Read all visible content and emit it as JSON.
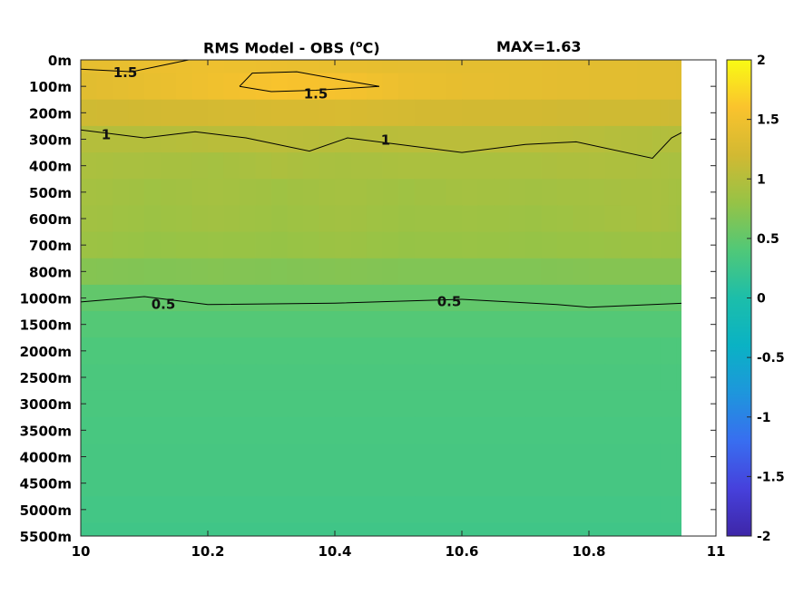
{
  "chart_data": {
    "type": "heatmap",
    "title": "RMS Model - OBS (",
    "title_unit_sup": "o",
    "title_unit_end": "C)",
    "max_label": "MAX=1.63",
    "x_ticks": [
      10,
      10.2,
      10.4,
      10.6,
      10.8,
      11
    ],
    "x_tick_labels": [
      "10",
      "10.2",
      "10.4",
      "10.6",
      "10.8",
      "11"
    ],
    "xlim": [
      10,
      11
    ],
    "x_data_end": 10.95,
    "y_levels": [
      "0m",
      "100m",
      "200m",
      "300m",
      "400m",
      "500m",
      "600m",
      "700m",
      "800m",
      "1000m",
      "1500m",
      "2000m",
      "2500m",
      "3000m",
      "3500m",
      "4000m",
      "4500m",
      "5000m",
      "5500m"
    ],
    "colorbar": {
      "ticks": [
        2,
        1.5,
        1,
        0.5,
        0,
        -0.5,
        -1,
        -1.5,
        -2
      ],
      "tick_labels": [
        "2",
        "1.5",
        "1",
        "0.5",
        "0",
        "-0.5",
        "-1",
        "-1.5",
        "-2"
      ],
      "range": [
        -2,
        2
      ],
      "colormap": "parula"
    },
    "x_samples": [
      10.0,
      10.1,
      10.2,
      10.3,
      10.4,
      10.5,
      10.6,
      10.7,
      10.8,
      10.9,
      10.95
    ],
    "values": [
      [
        1.4,
        1.45,
        1.48,
        1.45,
        1.42,
        1.4,
        1.38,
        1.38,
        1.36,
        1.35,
        1.34
      ],
      [
        1.35,
        1.42,
        1.5,
        1.58,
        1.55,
        1.45,
        1.4,
        1.38,
        1.36,
        1.35,
        1.34
      ],
      [
        1.18,
        1.2,
        1.22,
        1.25,
        1.26,
        1.22,
        1.2,
        1.2,
        1.18,
        1.18,
        1.16
      ],
      [
        1.0,
        1.0,
        1.03,
        1.05,
        1.02,
        1.04,
        1.05,
        1.05,
        1.02,
        0.98,
        1.0
      ],
      [
        0.94,
        0.92,
        0.9,
        0.95,
        0.92,
        0.94,
        0.93,
        0.94,
        0.96,
        0.94,
        0.92
      ],
      [
        0.9,
        0.86,
        0.9,
        0.86,
        0.9,
        0.86,
        0.9,
        0.88,
        0.9,
        0.92,
        0.88
      ],
      [
        0.88,
        0.84,
        0.88,
        0.84,
        0.88,
        0.84,
        0.86,
        0.84,
        0.88,
        0.92,
        0.86
      ],
      [
        0.84,
        0.8,
        0.82,
        0.8,
        0.84,
        0.8,
        0.82,
        0.8,
        0.82,
        0.84,
        0.82
      ],
      [
        0.7,
        0.68,
        0.7,
        0.68,
        0.7,
        0.68,
        0.68,
        0.68,
        0.7,
        0.7,
        0.7
      ],
      [
        0.5,
        0.5,
        0.5,
        0.5,
        0.5,
        0.5,
        0.5,
        0.5,
        0.5,
        0.5,
        0.5
      ],
      [
        0.42,
        0.42,
        0.42,
        0.42,
        0.42,
        0.42,
        0.42,
        0.42,
        0.42,
        0.42,
        0.42
      ],
      [
        0.38,
        0.38,
        0.38,
        0.38,
        0.38,
        0.38,
        0.38,
        0.38,
        0.38,
        0.38,
        0.38
      ],
      [
        0.36,
        0.36,
        0.36,
        0.36,
        0.36,
        0.36,
        0.36,
        0.36,
        0.36,
        0.36,
        0.36
      ],
      [
        0.35,
        0.35,
        0.35,
        0.35,
        0.35,
        0.35,
        0.35,
        0.35,
        0.35,
        0.35,
        0.35
      ],
      [
        0.34,
        0.34,
        0.34,
        0.34,
        0.34,
        0.34,
        0.34,
        0.34,
        0.34,
        0.34,
        0.34
      ],
      [
        0.33,
        0.33,
        0.33,
        0.33,
        0.33,
        0.33,
        0.33,
        0.33,
        0.33,
        0.33,
        0.33
      ],
      [
        0.32,
        0.32,
        0.32,
        0.32,
        0.32,
        0.32,
        0.32,
        0.32,
        0.32,
        0.32,
        0.32
      ],
      [
        0.3,
        0.3,
        0.3,
        0.3,
        0.3,
        0.3,
        0.3,
        0.3,
        0.3,
        0.3,
        0.3
      ],
      [
        0.28,
        0.28,
        0.28,
        0.28,
        0.28,
        0.28,
        0.28,
        0.28,
        0.28,
        0.28,
        0.28
      ]
    ],
    "contours": [
      {
        "label": "1.5",
        "points": [
          [
            10.0,
            0.35
          ],
          [
            10.08,
            0.45
          ],
          [
            10.17,
            0.0
          ]
        ]
      },
      {
        "label": "1.5",
        "points": [
          [
            10.25,
            1.0
          ],
          [
            10.27,
            0.5
          ],
          [
            10.34,
            0.45
          ],
          [
            10.42,
            0.8
          ],
          [
            10.47,
            1.0
          ],
          [
            10.37,
            1.15
          ],
          [
            10.3,
            1.2
          ],
          [
            10.25,
            1.0
          ]
        ]
      },
      {
        "label": "1",
        "points": [
          [
            10.0,
            2.65
          ],
          [
            10.1,
            2.95
          ],
          [
            10.18,
            2.72
          ],
          [
            10.26,
            2.95
          ],
          [
            10.36,
            3.45
          ],
          [
            10.42,
            2.95
          ],
          [
            10.6,
            3.5
          ],
          [
            10.7,
            3.2
          ],
          [
            10.78,
            3.1
          ],
          [
            10.9,
            3.72
          ],
          [
            10.93,
            2.95
          ],
          [
            10.95,
            2.7
          ]
        ]
      },
      {
        "label": "0.5",
        "points": [
          [
            10.0,
            9.15
          ],
          [
            10.1,
            8.95
          ],
          [
            10.2,
            9.25
          ],
          [
            10.4,
            9.2
          ],
          [
            10.6,
            9.05
          ],
          [
            10.75,
            9.25
          ],
          [
            10.8,
            9.35
          ],
          [
            10.95,
            9.2
          ]
        ]
      }
    ],
    "contour_labels": [
      {
        "text": "1.5",
        "x": 10.07,
        "y": 0.45
      },
      {
        "text": "1.5",
        "x": 10.37,
        "y": 1.25
      },
      {
        "text": "1",
        "x": 10.04,
        "y": 2.8
      },
      {
        "text": "1",
        "x": 10.48,
        "y": 3.0
      },
      {
        "text": "0.5",
        "x": 10.13,
        "y": 9.2
      },
      {
        "text": "0.5",
        "x": 10.58,
        "y": 9.1
      }
    ]
  }
}
